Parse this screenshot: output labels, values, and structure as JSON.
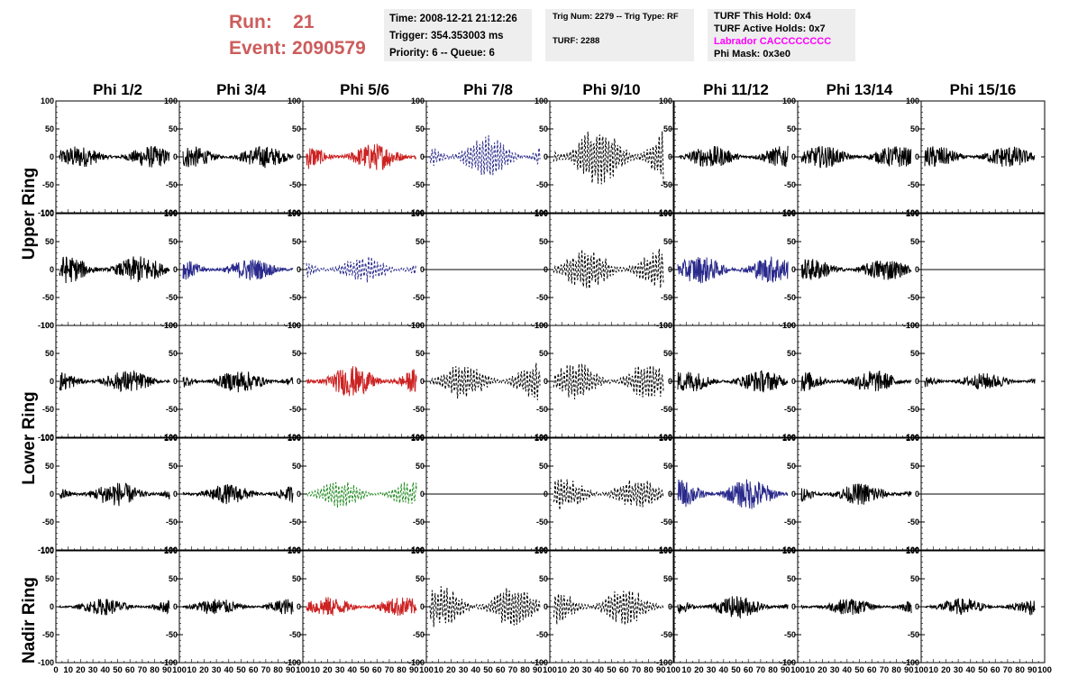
{
  "header": {
    "run_label": "Run:",
    "run_value": "21",
    "event_label": "Event:",
    "event_value": "2090579"
  },
  "info": {
    "time": "Time: 2008-12-21 21:12:26",
    "trigger": "Trigger: 354.353003 ms",
    "priority": "Priority: 6 -- Queue: 6",
    "trig_num": "Trig Num: 2279 -- Trig Type: RF",
    "turf": "TURF: 2288",
    "turf_hold": "TURF This Hold: 0x4",
    "turf_active": "TURF Active Holds: 0x7",
    "labrador": "Labrador CACCCCCCCC",
    "phi_mask": "Phi Mask: 0x3e0"
  },
  "chart_data": {
    "type": "line",
    "columns": [
      "Phi 1/2",
      "Phi 3/4",
      "Phi 5/6",
      "Phi 7/8",
      "Phi 9/10",
      "Phi 11/12",
      "Phi 13/14",
      "Phi 15/16"
    ],
    "ring_labels": [
      "Upper Ring",
      "Lower Ring",
      "Nadir Ring"
    ],
    "ylim": [
      -100,
      100
    ],
    "xlim": [
      0,
      100
    ],
    "y_ticks": [
      -100,
      -50,
      0,
      50,
      100
    ],
    "x_ticks": [
      "0",
      "10",
      "20",
      "30",
      "40",
      "50",
      "60",
      "70",
      "80",
      "90",
      "100"
    ],
    "colors": {
      "black": "#000000",
      "red": "#cc2222",
      "blue": "#2a2a8c",
      "green": "#228b22"
    },
    "panels": [
      [
        "black",
        "black",
        "red",
        "blue-dashed",
        "black-dashed",
        "black",
        "black",
        "black"
      ],
      [
        "black",
        "blue",
        "blue-dashed",
        "flat",
        "black-dashed",
        "blue",
        "black",
        "flat"
      ],
      [
        "black",
        "black",
        "red",
        "black-dashed",
        "black-dashed",
        "black",
        "black",
        "black"
      ],
      [
        "black",
        "black",
        "green-dashed",
        "flat",
        "black-dashed",
        "blue",
        "black",
        "flat"
      ],
      [
        "black",
        "black",
        "red",
        "black-dashed",
        "black-dashed",
        "black",
        "black",
        "black"
      ]
    ],
    "amplitude": [
      [
        20,
        20,
        25,
        40,
        60,
        20,
        20,
        20
      ],
      [
        25,
        20,
        25,
        0,
        40,
        25,
        20,
        0
      ],
      [
        20,
        20,
        28,
        35,
        35,
        20,
        20,
        15
      ],
      [
        22,
        18,
        25,
        0,
        30,
        28,
        20,
        0
      ],
      [
        15,
        15,
        18,
        40,
        35,
        20,
        15,
        15
      ]
    ]
  }
}
